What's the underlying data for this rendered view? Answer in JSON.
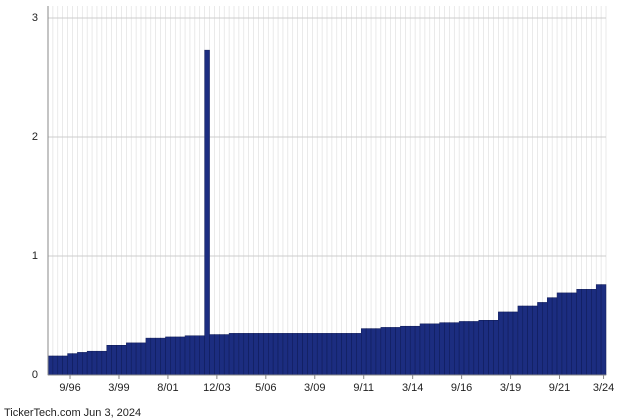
{
  "chart_data": {
    "type": "bar",
    "categories": [
      null,
      null,
      null,
      null,
      "9/96",
      null,
      null,
      null,
      null,
      null,
      null,
      null,
      null,
      null,
      "3/99",
      null,
      null,
      null,
      null,
      null,
      null,
      null,
      null,
      null,
      "8/01",
      null,
      null,
      null,
      null,
      null,
      null,
      null,
      null,
      null,
      "12/03",
      null,
      null,
      null,
      null,
      null,
      null,
      null,
      null,
      null,
      "5/06",
      null,
      null,
      null,
      null,
      null,
      null,
      null,
      null,
      null,
      "3/09",
      null,
      null,
      null,
      null,
      null,
      null,
      null,
      null,
      null,
      "9/11",
      null,
      null,
      null,
      null,
      null,
      null,
      null,
      null,
      null,
      "3/14",
      null,
      null,
      null,
      null,
      null,
      null,
      null,
      null,
      null,
      "9/16",
      null,
      null,
      null,
      null,
      null,
      null,
      null,
      null,
      null,
      "3/19",
      null,
      null,
      null,
      null,
      null,
      null,
      null,
      null,
      null,
      "9/21",
      null,
      null,
      null,
      null,
      null,
      null,
      null,
      null,
      "3/24"
    ],
    "values": [
      0.16,
      0.16,
      0.16,
      0.16,
      0.18,
      0.18,
      0.19,
      0.19,
      0.2,
      0.2,
      0.2,
      0.2,
      0.25,
      0.25,
      0.25,
      0.25,
      0.27,
      0.27,
      0.27,
      0.27,
      0.31,
      0.31,
      0.31,
      0.31,
      0.32,
      0.32,
      0.32,
      0.32,
      0.33,
      0.33,
      0.33,
      0.33,
      2.73,
      0.34,
      0.34,
      0.34,
      0.34,
      0.35,
      0.35,
      0.35,
      0.35,
      0.35,
      0.35,
      0.35,
      0.35,
      0.35,
      0.35,
      0.35,
      0.35,
      0.35,
      0.35,
      0.35,
      0.35,
      0.35,
      0.35,
      0.35,
      0.35,
      0.35,
      0.35,
      0.35,
      0.35,
      0.35,
      0.35,
      0.35,
      0.39,
      0.39,
      0.39,
      0.39,
      0.4,
      0.4,
      0.4,
      0.4,
      0.41,
      0.41,
      0.41,
      0.41,
      0.43,
      0.43,
      0.43,
      0.43,
      0.44,
      0.44,
      0.44,
      0.44,
      0.45,
      0.45,
      0.45,
      0.45,
      0.46,
      0.46,
      0.46,
      0.46,
      0.53,
      0.53,
      0.53,
      0.53,
      0.58,
      0.58,
      0.58,
      0.58,
      0.61,
      0.61,
      0.65,
      0.65,
      0.69,
      0.69,
      0.69,
      0.69,
      0.72,
      0.72,
      0.72,
      0.72,
      0.76,
      0.76
    ],
    "color": "#1c2d80",
    "ylim": [
      0,
      3
    ],
    "yticks": [
      0,
      1,
      2,
      3
    ],
    "grid": true,
    "footer": "TickerTech.com  Jun 3, 2024"
  }
}
